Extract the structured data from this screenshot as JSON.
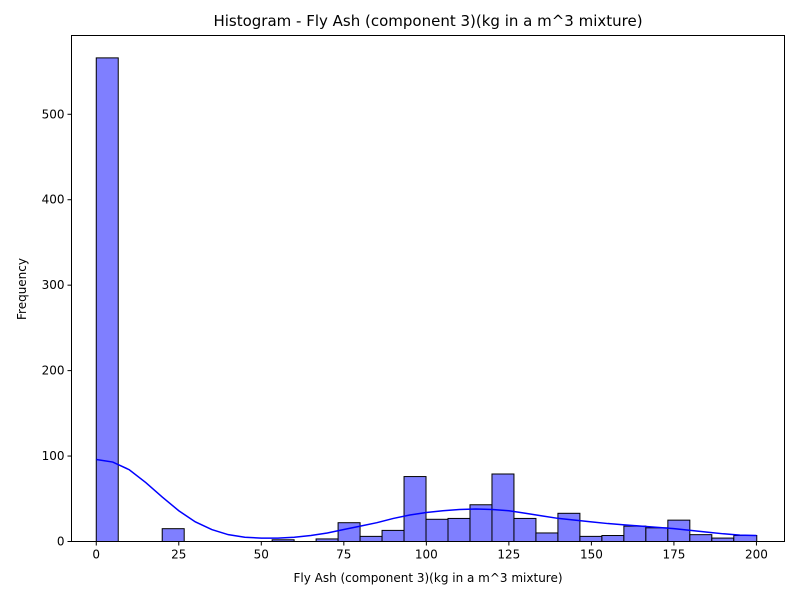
{
  "chart_data": {
    "type": "bar",
    "title": "Histogram - Fly Ash (component 3)(kg in a m^3 mixture)",
    "xlabel": "Fly Ash (component 3)(kg in a m^3 mixture)",
    "ylabel": "Frequency",
    "xlim": [
      -7.5,
      208.5
    ],
    "ylim": [
      0,
      592.2
    ],
    "xticks": [
      0,
      25,
      50,
      75,
      100,
      125,
      150,
      175,
      200
    ],
    "yticks": [
      0,
      100,
      200,
      300,
      400,
      500
    ],
    "grid": false,
    "bar_color": "#7f7fff",
    "edge_color": "#000000",
    "kde_color": "#0000ff",
    "bins": [
      {
        "x0": 0.0,
        "x1": 6.66,
        "count": 566
      },
      {
        "x0": 6.66,
        "x1": 13.32,
        "count": 0
      },
      {
        "x0": 13.32,
        "x1": 19.98,
        "count": 0
      },
      {
        "x0": 19.98,
        "x1": 26.64,
        "count": 15
      },
      {
        "x0": 26.64,
        "x1": 33.3,
        "count": 0
      },
      {
        "x0": 33.3,
        "x1": 39.96,
        "count": 0
      },
      {
        "x0": 39.96,
        "x1": 46.62,
        "count": 0
      },
      {
        "x0": 46.62,
        "x1": 53.28,
        "count": 0
      },
      {
        "x0": 53.28,
        "x1": 59.94,
        "count": 2
      },
      {
        "x0": 59.94,
        "x1": 66.6,
        "count": 0
      },
      {
        "x0": 66.6,
        "x1": 73.26,
        "count": 3
      },
      {
        "x0": 73.26,
        "x1": 79.92,
        "count": 22
      },
      {
        "x0": 79.92,
        "x1": 86.58,
        "count": 6
      },
      {
        "x0": 86.58,
        "x1": 93.24,
        "count": 13
      },
      {
        "x0": 93.24,
        "x1": 99.9,
        "count": 76
      },
      {
        "x0": 99.9,
        "x1": 106.56,
        "count": 26
      },
      {
        "x0": 106.56,
        "x1": 113.22,
        "count": 27
      },
      {
        "x0": 113.22,
        "x1": 119.88,
        "count": 43
      },
      {
        "x0": 119.88,
        "x1": 126.54,
        "count": 79
      },
      {
        "x0": 126.54,
        "x1": 133.2,
        "count": 27
      },
      {
        "x0": 133.2,
        "x1": 139.86,
        "count": 10
      },
      {
        "x0": 139.86,
        "x1": 146.52,
        "count": 33
      },
      {
        "x0": 146.52,
        "x1": 153.18,
        "count": 6
      },
      {
        "x0": 153.18,
        "x1": 159.84,
        "count": 7
      },
      {
        "x0": 159.84,
        "x1": 166.5,
        "count": 18
      },
      {
        "x0": 166.5,
        "x1": 173.16,
        "count": 16
      },
      {
        "x0": 173.16,
        "x1": 179.82,
        "count": 25
      },
      {
        "x0": 179.82,
        "x1": 186.48,
        "count": 8
      },
      {
        "x0": 186.48,
        "x1": 193.14,
        "count": 4
      },
      {
        "x0": 193.14,
        "x1": 200.1,
        "count": 7
      }
    ],
    "kde_curve": {
      "x": [
        0,
        5,
        10,
        15,
        20,
        25,
        30,
        35,
        40,
        45,
        50,
        55,
        60,
        65,
        70,
        75,
        80,
        85,
        90,
        95,
        100,
        105,
        110,
        115,
        120,
        125,
        130,
        135,
        140,
        145,
        150,
        155,
        160,
        165,
        170,
        175,
        180,
        185,
        190,
        195,
        200
      ],
      "y": [
        96,
        93,
        84,
        69,
        52,
        36,
        23,
        14,
        8,
        5,
        4,
        4,
        5,
        7,
        10,
        14,
        18,
        22,
        27,
        31,
        34,
        36,
        37.5,
        38,
        37.5,
        36,
        33,
        30,
        27,
        25,
        23,
        21,
        19.5,
        18,
        16.5,
        15,
        13,
        11,
        9,
        7.5,
        7
      ]
    }
  }
}
